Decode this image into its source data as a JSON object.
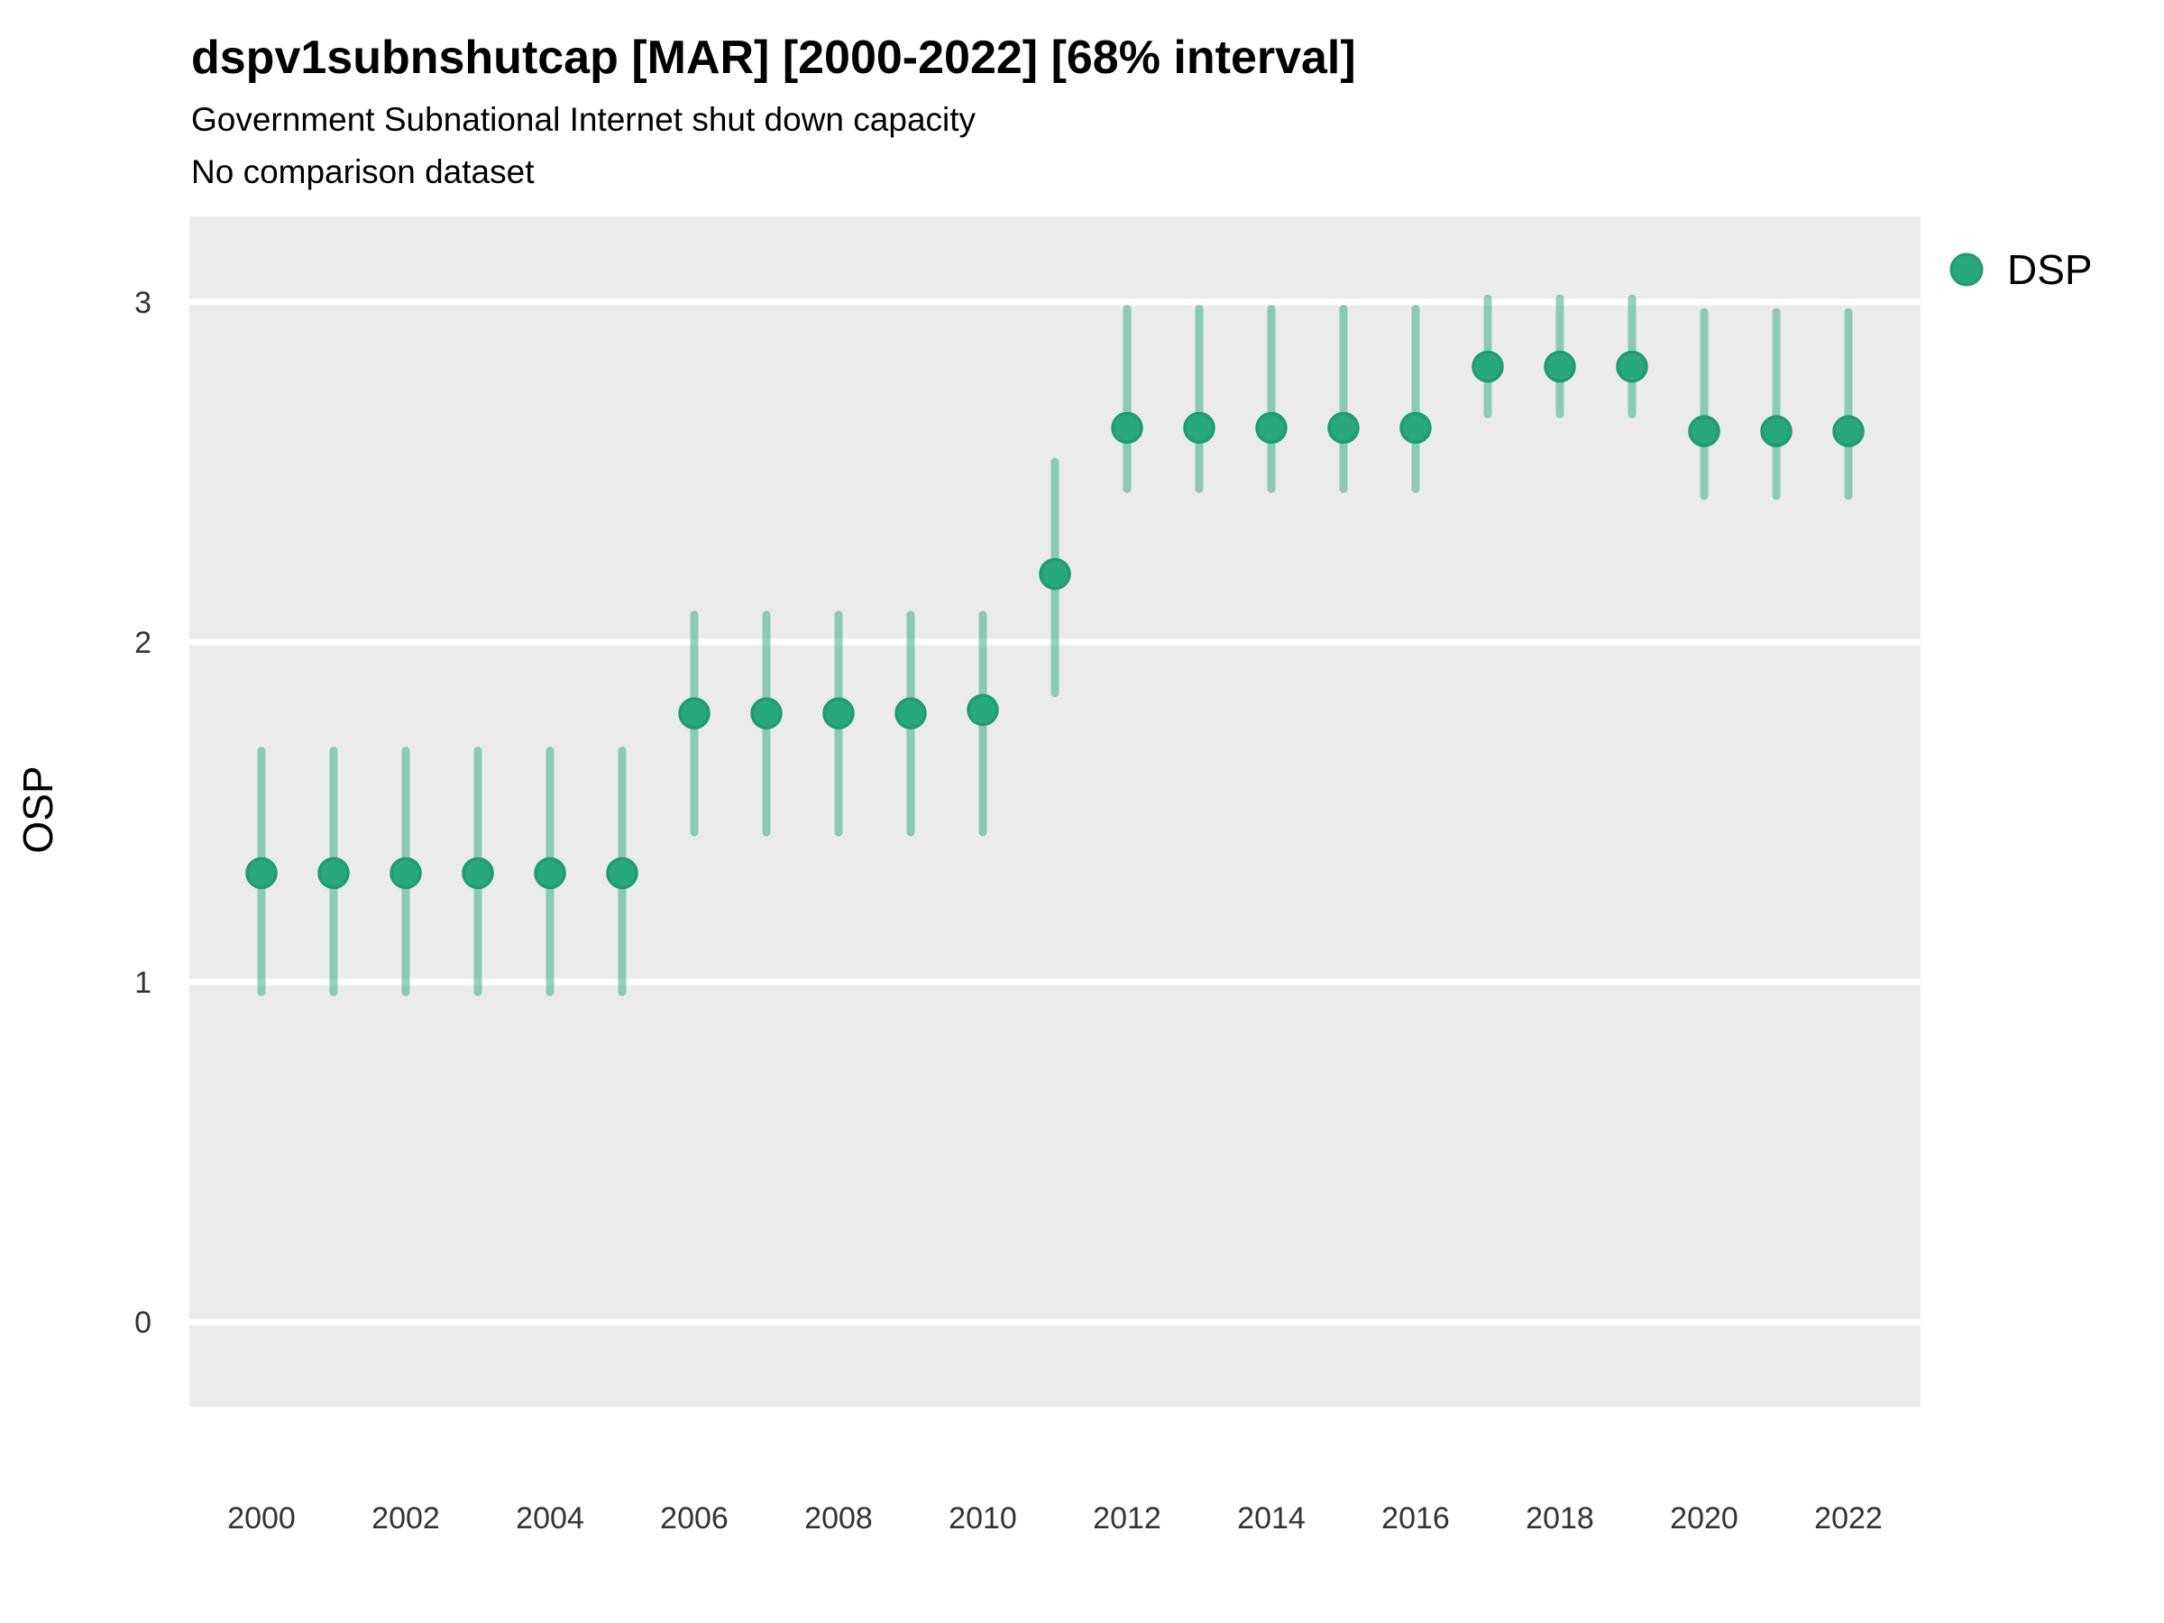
{
  "title": "dspv1subnshutcap [MAR] [2000-2022] [68% interval]",
  "subtitle": "Government Subnational Internet shut down capacity",
  "note": "No comparison dataset",
  "legend": {
    "label": "DSP",
    "position": "right-top"
  },
  "colors": {
    "point_fill": "#2aa87d",
    "point_stroke": "#1e9c72",
    "interval_bar": "rgba(42, 168, 125, 0.5)",
    "panel_background": "#ebebeb",
    "gridline": "#ffffff",
    "title_text": "#000000",
    "axis_text": "#333333"
  },
  "chart_data": {
    "type": "scatter",
    "title": "dspv1subnshutcap [MAR] [2000-2022] [68% interval]",
    "subtitle": "Government Subnational Internet shut down capacity",
    "note": "No comparison dataset",
    "xlabel": "",
    "ylabel": "OSP",
    "series": [
      {
        "name": "DSP",
        "x": [
          2000,
          2001,
          2002,
          2003,
          2004,
          2005,
          2006,
          2007,
          2008,
          2009,
          2010,
          2011,
          2012,
          2013,
          2014,
          2015,
          2016,
          2017,
          2018,
          2019,
          2020,
          2021,
          2022
        ],
        "y": [
          1.32,
          1.32,
          1.32,
          1.32,
          1.32,
          1.32,
          1.79,
          1.79,
          1.79,
          1.79,
          1.8,
          2.2,
          2.63,
          2.63,
          2.63,
          2.63,
          2.63,
          2.81,
          2.81,
          2.81,
          2.62,
          2.62,
          2.62
        ],
        "interval_low": [
          0.97,
          0.97,
          0.97,
          0.97,
          0.97,
          0.97,
          1.44,
          1.44,
          1.44,
          1.44,
          1.44,
          1.85,
          2.45,
          2.45,
          2.45,
          2.45,
          2.45,
          2.67,
          2.67,
          2.67,
          2.43,
          2.43,
          2.43
        ],
        "interval_high": [
          1.68,
          1.68,
          1.68,
          1.68,
          1.68,
          1.68,
          2.08,
          2.08,
          2.08,
          2.08,
          2.08,
          2.53,
          2.98,
          2.98,
          2.98,
          2.98,
          2.98,
          3.01,
          3.01,
          3.01,
          2.97,
          2.97,
          2.97
        ],
        "interval_level": "68%"
      }
    ],
    "xticks": [
      2000,
      2002,
      2004,
      2006,
      2008,
      2010,
      2012,
      2014,
      2016,
      2018,
      2020,
      2022
    ],
    "yticks": [
      0,
      1,
      2,
      3
    ],
    "xlim": [
      1999,
      2023
    ],
    "ylim": [
      -0.25,
      3.25
    ],
    "grid": "horizontal major gridlines, white on gray panel",
    "legend_position": "right-top"
  }
}
